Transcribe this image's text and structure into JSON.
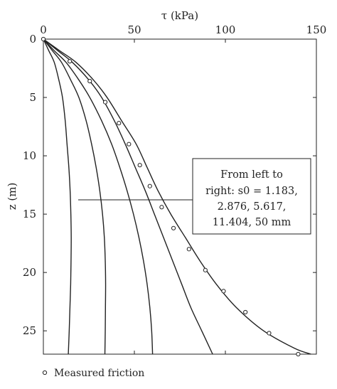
{
  "chart_data": {
    "type": "line",
    "title": "",
    "xlabel": "τ (kPa)",
    "ylabel": "z (m)",
    "xaxis_position": "top",
    "yaxis_inverted": true,
    "xlim": [
      0,
      150
    ],
    "ylim": [
      0,
      27
    ],
    "x_ticks": [
      0,
      50,
      100,
      150
    ],
    "y_ticks": [
      0,
      5,
      10,
      15,
      20,
      25
    ],
    "grid": false,
    "annotation": {
      "lines": [
        "From left to",
        "right: s0 = 1.183,",
        "2.876, 5.617,",
        "11.404, 50 mm"
      ]
    },
    "series": [
      {
        "label": "1.183",
        "points": [
          [
            0,
            0
          ],
          [
            3,
            1
          ],
          [
            6,
            2
          ],
          [
            8.5,
            3.5
          ],
          [
            10.5,
            5
          ],
          [
            12,
            7
          ],
          [
            13,
            9
          ],
          [
            14,
            11
          ],
          [
            14.7,
            13
          ],
          [
            15.1,
            15
          ],
          [
            15.3,
            17
          ],
          [
            15.2,
            19
          ],
          [
            15,
            21
          ],
          [
            14.6,
            23
          ],
          [
            14.2,
            25
          ],
          [
            13.7,
            27
          ]
        ]
      },
      {
        "label": "2.876",
        "points": [
          [
            0,
            0
          ],
          [
            5,
            1
          ],
          [
            10,
            2
          ],
          [
            15,
            3.5
          ],
          [
            19.5,
            5
          ],
          [
            23.5,
            7
          ],
          [
            26.5,
            9
          ],
          [
            29,
            11
          ],
          [
            31,
            13
          ],
          [
            32.5,
            15
          ],
          [
            33.5,
            17
          ],
          [
            34,
            19
          ],
          [
            34.2,
            21
          ],
          [
            34.1,
            23
          ],
          [
            34,
            25
          ],
          [
            33.8,
            27
          ]
        ]
      },
      {
        "label": "5.617",
        "points": [
          [
            0,
            0
          ],
          [
            6,
            1
          ],
          [
            12.5,
            2
          ],
          [
            19.5,
            3.5
          ],
          [
            25.5,
            5
          ],
          [
            32,
            7
          ],
          [
            37.5,
            9
          ],
          [
            42,
            11
          ],
          [
            46,
            13
          ],
          [
            49.5,
            15
          ],
          [
            52.5,
            17
          ],
          [
            55,
            19
          ],
          [
            57,
            21
          ],
          [
            58.5,
            23
          ],
          [
            59.5,
            25
          ],
          [
            60,
            27
          ]
        ]
      },
      {
        "label": "11.404",
        "points": [
          [
            0,
            0
          ],
          [
            8,
            1
          ],
          [
            16,
            2
          ],
          [
            25,
            3.5
          ],
          [
            32,
            5
          ],
          [
            39,
            7
          ],
          [
            45,
            9
          ],
          [
            50.5,
            11
          ],
          [
            56,
            13
          ],
          [
            61,
            15
          ],
          [
            66,
            17
          ],
          [
            71,
            19
          ],
          [
            76,
            21
          ],
          [
            81,
            23
          ],
          [
            87,
            25
          ],
          [
            93,
            27
          ]
        ]
      },
      {
        "label": "50",
        "points": [
          [
            0,
            0
          ],
          [
            9,
            1
          ],
          [
            18,
            2
          ],
          [
            27.5,
            3.5
          ],
          [
            35,
            5
          ],
          [
            43,
            7
          ],
          [
            51,
            9
          ],
          [
            57,
            11
          ],
          [
            63,
            13
          ],
          [
            70,
            15
          ],
          [
            78,
            17
          ],
          [
            86,
            19
          ],
          [
            95,
            21
          ],
          [
            106,
            23
          ],
          [
            121,
            25
          ],
          [
            138,
            26.5
          ],
          [
            147,
            27
          ]
        ]
      }
    ],
    "measured": {
      "label": "Measured friction",
      "points": [
        [
          0,
          0
        ],
        [
          14.5,
          1.9
        ],
        [
          25.5,
          3.6
        ],
        [
          34,
          5.4
        ],
        [
          41.5,
          7.2
        ],
        [
          47,
          9
        ],
        [
          53,
          10.8
        ],
        [
          58.5,
          12.6
        ],
        [
          65,
          14.4
        ],
        [
          71.5,
          16.2
        ],
        [
          80,
          18
        ],
        [
          89,
          19.8
        ],
        [
          99,
          21.6
        ],
        [
          111,
          23.4
        ],
        [
          124,
          25.2
        ],
        [
          140,
          27
        ]
      ]
    }
  }
}
